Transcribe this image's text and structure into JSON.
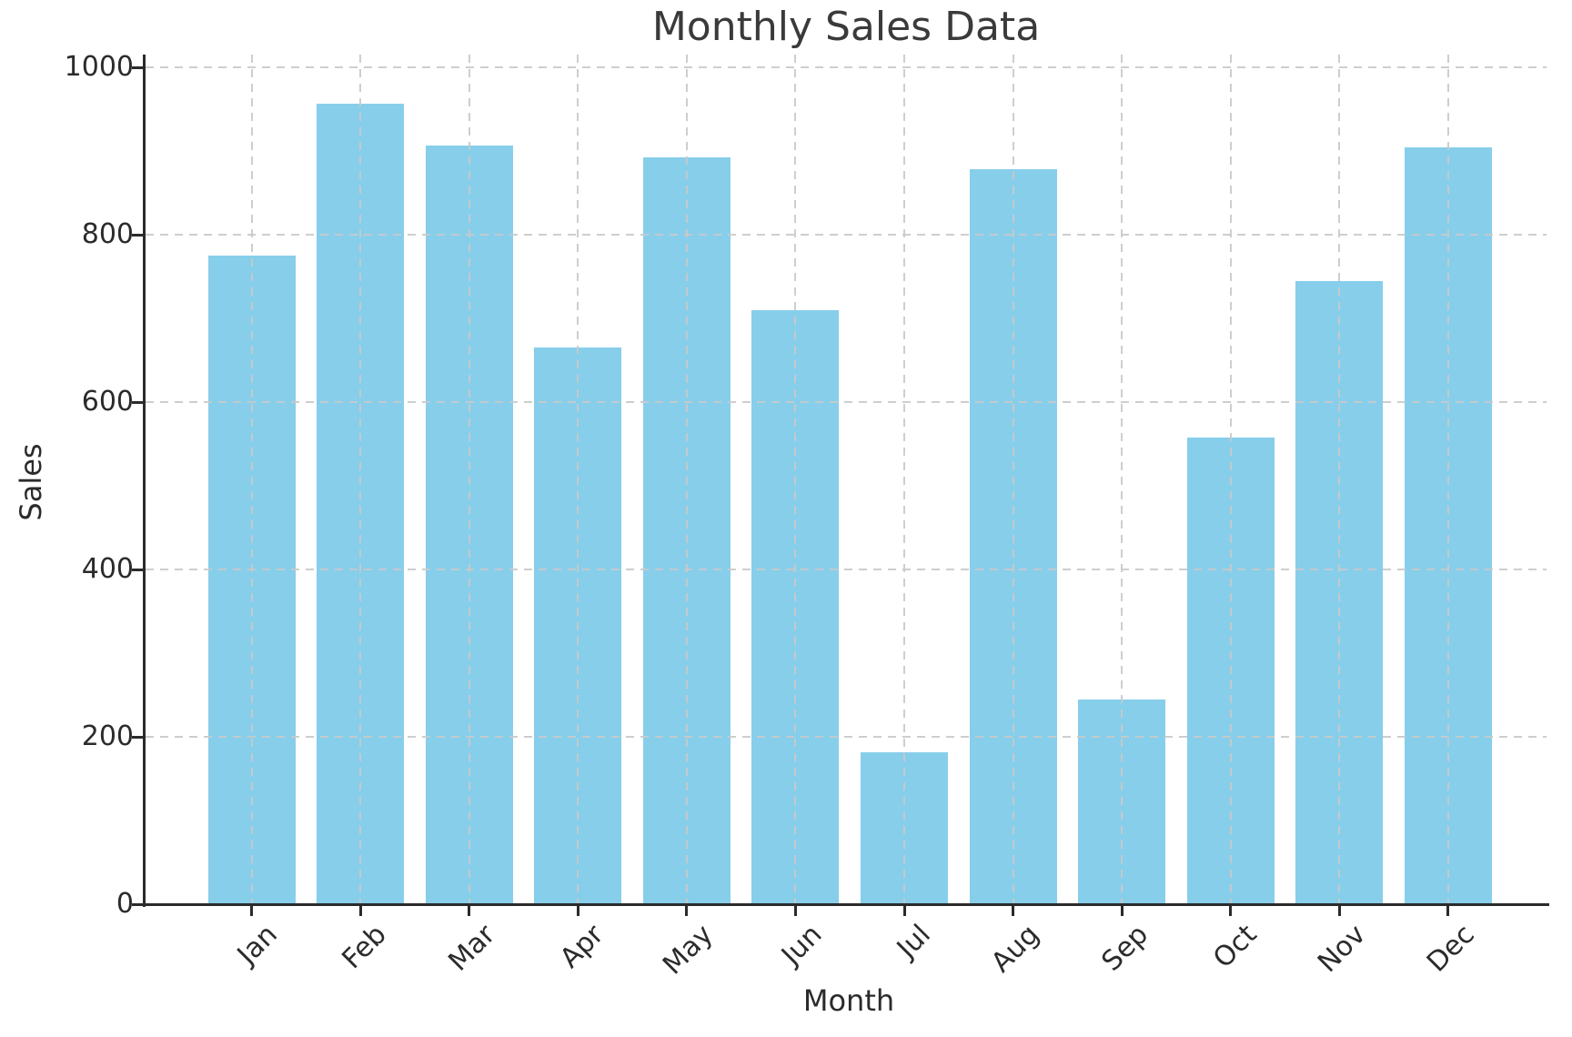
{
  "chart_data": {
    "type": "bar",
    "title": "Monthly Sales Data",
    "xlabel": "Month",
    "ylabel": "Sales",
    "categories": [
      "Jan",
      "Feb",
      "Mar",
      "Apr",
      "May",
      "Jun",
      "Jul",
      "Aug",
      "Sep",
      "Oct",
      "Nov",
      "Dec"
    ],
    "values": [
      775,
      956,
      907,
      665,
      892,
      710,
      182,
      878,
      245,
      558,
      745,
      904
    ],
    "ylim": [
      0,
      1015
    ],
    "yticks": [
      0,
      200,
      400,
      600,
      800,
      1000
    ],
    "grid": "dashed gridlines on both axes, drawn above bars",
    "legend": "none",
    "bar_color": "#87CEEB",
    "xtick_rotation_deg": 45
  },
  "colors": {
    "background": "#ffffff",
    "bar_fill": "#87CEEB",
    "grid": "#c9c9c9",
    "axis": "#2b2b2b",
    "title_text": "#3a3a3a"
  }
}
